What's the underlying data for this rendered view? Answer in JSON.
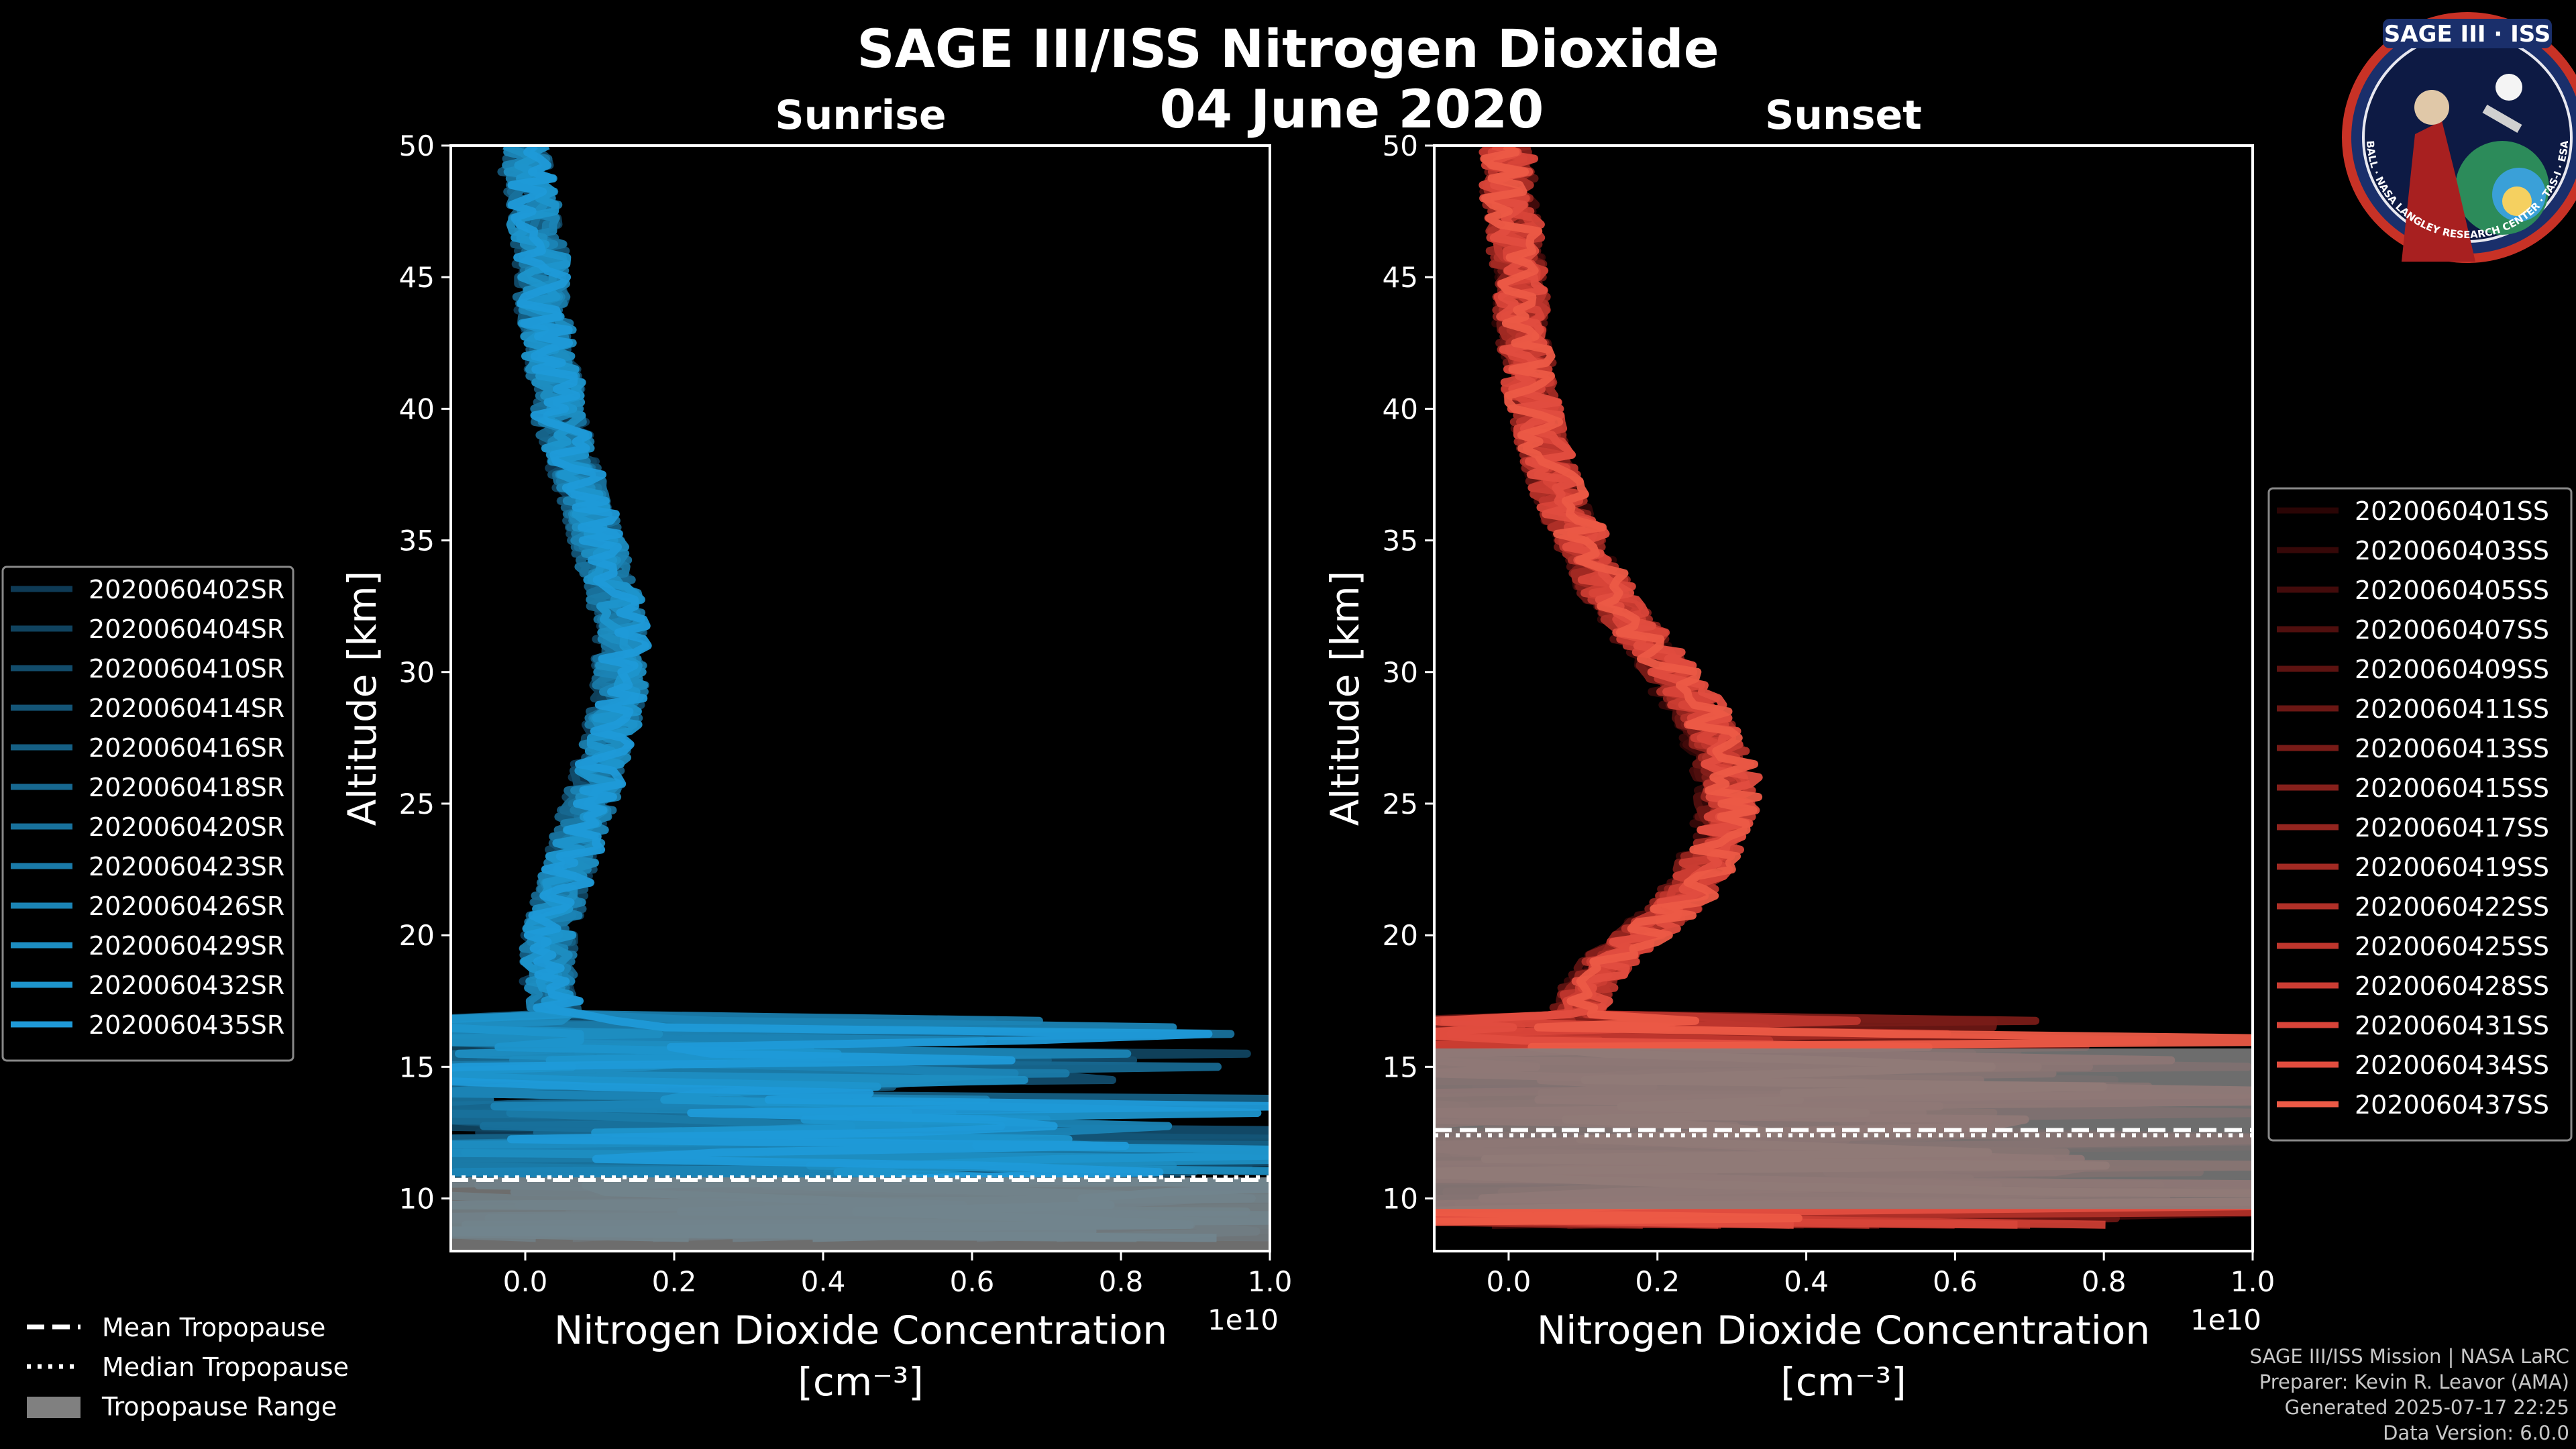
{
  "title": "SAGE III/ISS Nitrogen Dioxide",
  "subtitle": "04 June 2020",
  "logo": {
    "text": "SAGE III · ISS",
    "ring_text": "BALL · NASA LANGLEY RESEARCH CENTER · TAS-I · ESA"
  },
  "footer": {
    "line1": "SAGE III/ISS Mission | NASA LaRC",
    "line2": "Preparer: Kevin R. Leavor (AMA)",
    "line3": "Generated 2025-07-17 22:25",
    "line4": "Data Version: 6.0.0"
  },
  "colors": {
    "background": "#000000",
    "sunrise": "#1f9ad8",
    "sunset": "#ec5a46",
    "tropopause_range": "#808080"
  },
  "tropopause_legend": {
    "mean": "Mean Tropopause",
    "median": "Median Tropopause",
    "range": "Tropopause Range"
  },
  "chart_data": [
    {
      "type": "line",
      "title": "Sunrise",
      "xlabel": "Nitrogen Dioxide Concentration",
      "xunit": "[cm⁻³]",
      "x_multiplier": "1e10",
      "ylabel": "Altitude [km]",
      "xlim": [
        -0.1,
        1.0
      ],
      "ylim": [
        8,
        50
      ],
      "xticks": [
        "0.0",
        "0.2",
        "0.4",
        "0.6",
        "0.8",
        "1.0"
      ],
      "yticks": [
        "10",
        "15",
        "20",
        "25",
        "30",
        "35",
        "40",
        "45",
        "50"
      ],
      "grid": false,
      "legend_position": "left",
      "tropopause": {
        "range": [
          8,
          10.8
        ],
        "mean": 10.7,
        "median": 10.8
      },
      "profile_shape": {
        "altitude": [
          8.5,
          10,
          11,
          12,
          13,
          14,
          15,
          16,
          17,
          18,
          19,
          20,
          21,
          22,
          23,
          24,
          25,
          26,
          27,
          28,
          29,
          30,
          31,
          32,
          33,
          34,
          35,
          36,
          37,
          38,
          39,
          40,
          41,
          42,
          43,
          44,
          45,
          46,
          47,
          48,
          49,
          50
        ],
        "no2": [
          0.3,
          0.35,
          0.3,
          0.25,
          0.2,
          0.15,
          0.1,
          0.07,
          0.04,
          0.03,
          0.03,
          0.03,
          0.04,
          0.05,
          0.06,
          0.07,
          0.08,
          0.09,
          0.1,
          0.11,
          0.12,
          0.12,
          0.12,
          0.12,
          0.11,
          0.1,
          0.09,
          0.08,
          0.07,
          0.06,
          0.05,
          0.04,
          0.04,
          0.03,
          0.03,
          0.02,
          0.02,
          0.02,
          0.01,
          0.01,
          0.0,
          0.0
        ]
      },
      "series": [
        {
          "name": "2020060402SR",
          "color": "#0e3a55"
        },
        {
          "name": "2020060404SR",
          "color": "#10435f"
        },
        {
          "name": "2020060410SR",
          "color": "#124c6b"
        },
        {
          "name": "2020060414SR",
          "color": "#145577"
        },
        {
          "name": "2020060416SR",
          "color": "#155f84"
        },
        {
          "name": "2020060418SR",
          "color": "#176890"
        },
        {
          "name": "2020060420SR",
          "color": "#18719c"
        },
        {
          "name": "2020060423SR",
          "color": "#1a7aa8"
        },
        {
          "name": "2020060426SR",
          "color": "#1b84b5"
        },
        {
          "name": "2020060429SR",
          "color": "#1d8dc1"
        },
        {
          "name": "2020060432SR",
          "color": "#1e95cc"
        },
        {
          "name": "2020060435SR",
          "color": "#1f9ad8"
        }
      ]
    },
    {
      "type": "line",
      "title": "Sunset",
      "xlabel": "Nitrogen Dioxide Concentration",
      "xunit": "[cm⁻³]",
      "x_multiplier": "1e10",
      "ylabel": "Altitude [km]",
      "xlim": [
        -0.1,
        1.0
      ],
      "ylim": [
        8,
        50
      ],
      "xticks": [
        "0.0",
        "0.2",
        "0.4",
        "0.6",
        "0.8",
        "1.0"
      ],
      "yticks": [
        "10",
        "15",
        "20",
        "25",
        "30",
        "35",
        "40",
        "45",
        "50"
      ],
      "grid": false,
      "legend_position": "right",
      "tropopause": {
        "range": [
          9.6,
          15.7
        ],
        "mean": 12.6,
        "median": 12.4
      },
      "profile_shape": {
        "altitude": [
          9.0,
          10,
          11,
          12,
          13,
          14,
          15,
          16,
          17,
          18,
          19,
          20,
          21,
          22,
          23,
          24,
          25,
          26,
          27,
          28,
          29,
          30,
          31,
          32,
          33,
          34,
          35,
          36,
          37,
          38,
          39,
          40,
          41,
          42,
          43,
          44,
          45,
          46,
          47,
          48,
          49,
          50
        ],
        "no2": [
          0.15,
          0.3,
          0.3,
          0.25,
          0.2,
          0.15,
          0.12,
          0.1,
          0.1,
          0.12,
          0.15,
          0.2,
          0.25,
          0.28,
          0.3,
          0.32,
          0.33,
          0.33,
          0.32,
          0.3,
          0.27,
          0.24,
          0.21,
          0.18,
          0.15,
          0.13,
          0.11,
          0.09,
          0.07,
          0.06,
          0.05,
          0.04,
          0.03,
          0.03,
          0.02,
          0.02,
          0.02,
          0.01,
          0.01,
          0.0,
          0.0,
          0.0
        ]
      },
      "series": [
        {
          "name": "2020060401SS",
          "color": "#2a0505"
        },
        {
          "name": "2020060403SS",
          "color": "#360808"
        },
        {
          "name": "2020060405SS",
          "color": "#430b0b"
        },
        {
          "name": "2020060407SS",
          "color": "#500f0e"
        },
        {
          "name": "2020060409SS",
          "color": "#5d1311"
        },
        {
          "name": "2020060411SS",
          "color": "#6b1714"
        },
        {
          "name": "2020060413SS",
          "color": "#781b17"
        },
        {
          "name": "2020060415SS",
          "color": "#86201b"
        },
        {
          "name": "2020060417SS",
          "color": "#94251f"
        },
        {
          "name": "2020060419SS",
          "color": "#a22a23"
        },
        {
          "name": "2020060422SS",
          "color": "#b03028"
        },
        {
          "name": "2020060425SS",
          "color": "#be362d"
        },
        {
          "name": "2020060428SS",
          "color": "#cb3d33"
        },
        {
          "name": "2020060431SS",
          "color": "#d84439"
        },
        {
          "name": "2020060434SS",
          "color": "#e24d3f"
        },
        {
          "name": "2020060437SS",
          "color": "#ec5a46"
        }
      ]
    }
  ]
}
